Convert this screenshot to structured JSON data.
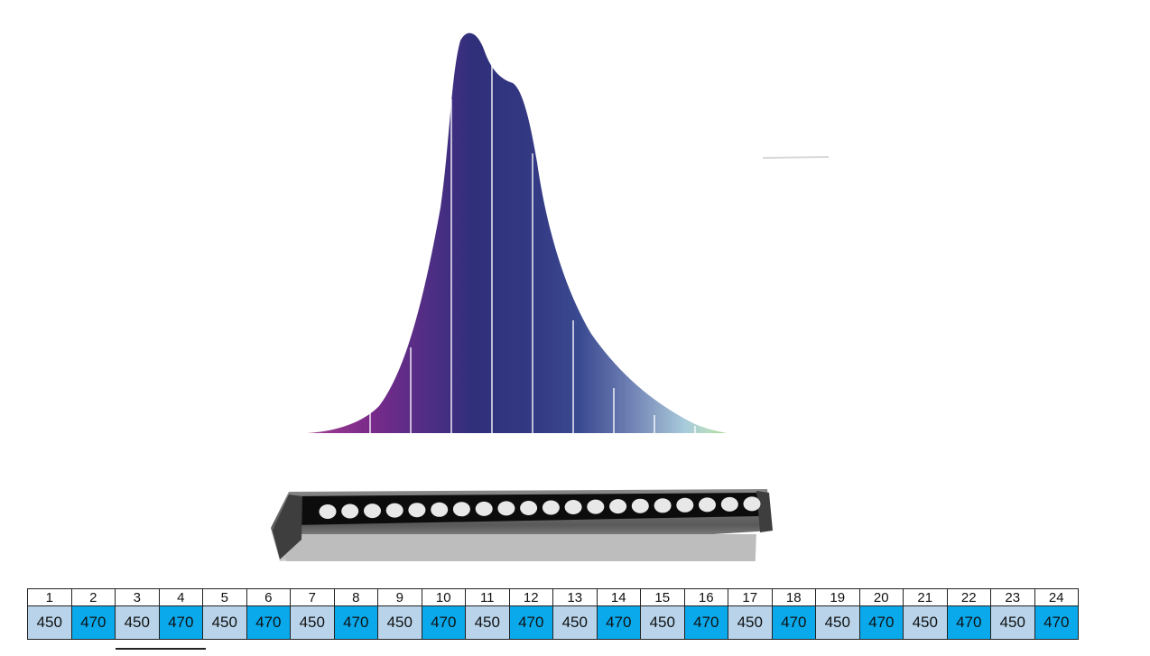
{
  "spectrum": {
    "colors": {
      "violet": "#7a2a8a",
      "indigo": "#2f2f7a",
      "blue": "#3a4a90",
      "light_blue": "#a7cbdc",
      "green": "#9fcf8a"
    }
  },
  "product": {
    "icon": "led-bar-light",
    "led_count": 20
  },
  "channels": {
    "numbers": [
      "1",
      "2",
      "3",
      "4",
      "5",
      "6",
      "7",
      "8",
      "9",
      "10",
      "11",
      "12",
      "13",
      "14",
      "15",
      "16",
      "17",
      "18",
      "19",
      "20",
      "21",
      "22",
      "23",
      "24"
    ],
    "wavelengths": [
      "450",
      "470",
      "450",
      "470",
      "450",
      "470",
      "450",
      "470",
      "450",
      "470",
      "450",
      "470",
      "450",
      "470",
      "450",
      "470",
      "450",
      "470",
      "450",
      "470",
      "450",
      "470",
      "450",
      "470"
    ],
    "colors": {
      "450": "#b9d4ea",
      "470": "#09a9ec"
    }
  }
}
